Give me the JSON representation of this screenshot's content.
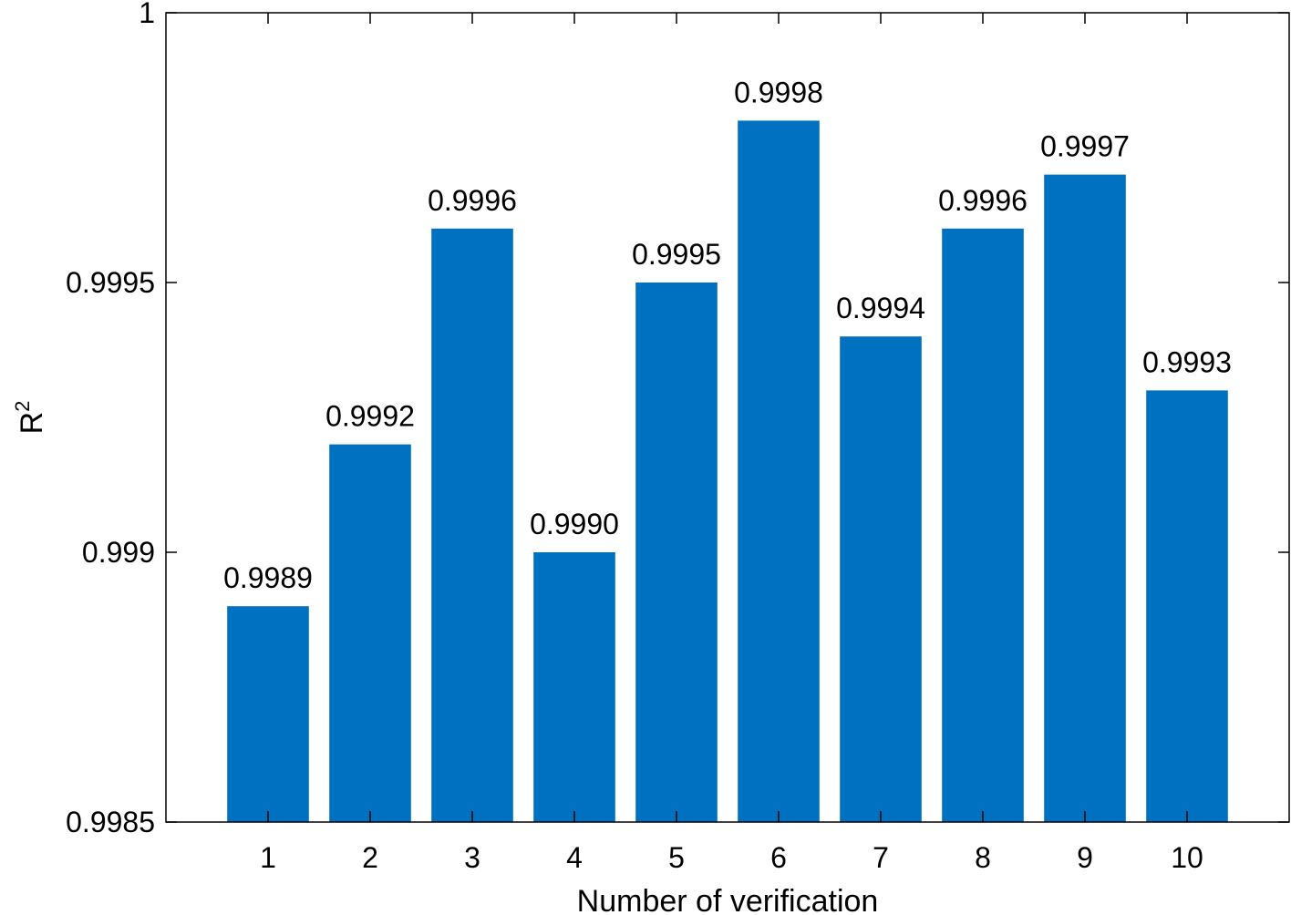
{
  "chart_data": {
    "type": "bar",
    "categories": [
      "1",
      "2",
      "3",
      "4",
      "5",
      "6",
      "7",
      "8",
      "9",
      "10"
    ],
    "values": [
      0.9989,
      0.9992,
      0.9996,
      0.999,
      0.9995,
      0.9998,
      0.9994,
      0.9996,
      0.9997,
      0.9993
    ],
    "data_labels": [
      "0.9989",
      "0.9992",
      "0.9996",
      "0.9990",
      "0.9995",
      "0.9998",
      "0.9994",
      "0.9996",
      "0.9997",
      "0.9993"
    ],
    "xlabel": "Number of verification",
    "ylabel": "R",
    "ylabel_superscript": "2",
    "ylim": [
      0.9985,
      1
    ],
    "yticks": [
      0.9985,
      0.999,
      0.9995,
      1
    ],
    "ytick_labels": [
      "0.9985",
      "0.999",
      "0.9995",
      "1"
    ],
    "bar_color": "#0070c0",
    "grid": false,
    "legend": "none"
  }
}
